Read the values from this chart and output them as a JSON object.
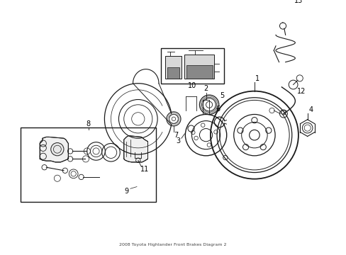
{
  "title": "2008 Toyota Highlander Front Brakes Diagram 2",
  "bg_color": "#ffffff",
  "line_color": "#1a1a1a",
  "fig_width": 4.89,
  "fig_height": 3.6,
  "dpi": 100
}
